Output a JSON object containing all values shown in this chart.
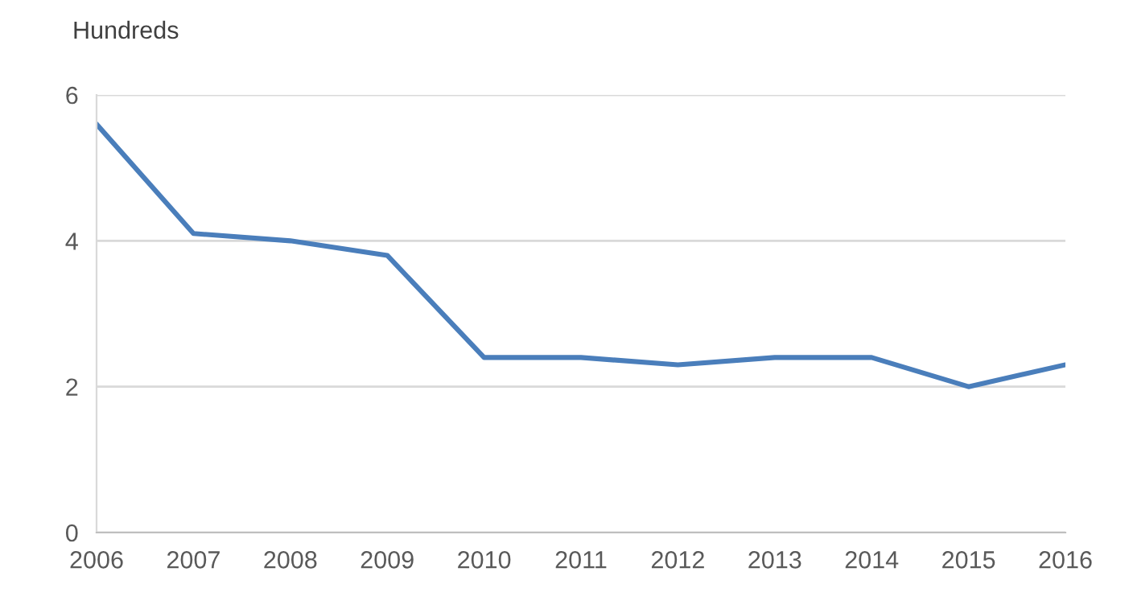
{
  "chart_data": {
    "type": "line",
    "ylabel": "Hundreds",
    "categories": [
      "2006",
      "2007",
      "2008",
      "2009",
      "2010",
      "2011",
      "2012",
      "2013",
      "2014",
      "2015",
      "2016"
    ],
    "series": [
      {
        "color": "#4a7ebb",
        "values": [
          5.6,
          4.1,
          4.0,
          3.8,
          2.4,
          2.4,
          2.3,
          2.4,
          2.4,
          2.0,
          2.3
        ]
      }
    ],
    "ylim": [
      0,
      6
    ],
    "yticks": [
      0,
      2,
      4,
      6
    ],
    "grid": "y",
    "legend": false,
    "marker": "none",
    "line_style": "solid"
  }
}
